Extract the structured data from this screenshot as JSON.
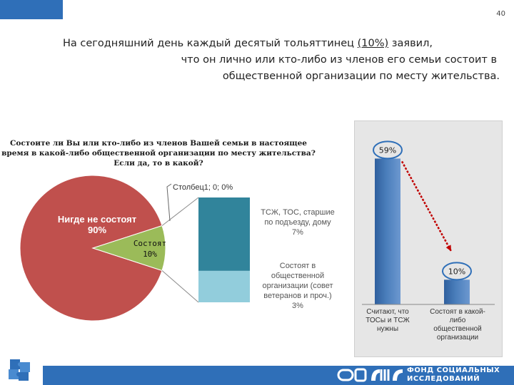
{
  "page_number": "40",
  "headline": {
    "line1_pre": "На сегодняшний день каждый десятый тольяттинец ",
    "line1_pct": "(10%)",
    "line1_post": " заявил,",
    "line2": "что он лично или кто-либо из членов его семьи состоит в",
    "line3": "общественной организации по месту жительства."
  },
  "chart_data": [
    {
      "type": "pie",
      "title": "Состоите ли Вы или кто-либо из членов Вашей семьи в настоящее время в какой-либо общественной организации по месту жительства? Если да, то в какой?",
      "title_lines": [
        "Состоите ли Вы или кто-либо из членов Вашей семьи в настоящее",
        "время в какой-либо общественной организации по месту жительства?",
        "Если да, то в какой?"
      ],
      "slices": [
        {
          "label": "Нигде не состоят",
          "value": 90,
          "value_label": "90%",
          "color": "#c0504d"
        },
        {
          "label": "Состоят",
          "value": 10,
          "value_label": "10%",
          "color": "#9bbb59"
        }
      ],
      "breakdown": {
        "parent": "Состоят",
        "zero_label": "Столбец1; 0; 0%",
        "segments": [
          {
            "label": "ТСЖ, ТОС, старшие по подъезду, дому",
            "value": 7,
            "value_label": "7%",
            "color": "#31849b"
          },
          {
            "label": "Состоят в общественной организации (совет ветеранов и проч.)",
            "value": 3,
            "value_label": "3%",
            "color": "#92cddc"
          }
        ],
        "text_lines": [
          [
            "ТСЖ, ТОС, старшие",
            "по подъезду, дому",
            "7%"
          ],
          [
            "Состоят в",
            "общественной",
            "организации (совет",
            "ветеранов и проч.)",
            "3%"
          ]
        ]
      }
    },
    {
      "type": "bar",
      "categories": [
        "Считают, что ТОСы и ТСЖ нужны",
        "Состоят в какой-либо общественной организации"
      ],
      "category_lines": [
        [
          "Считают, что",
          "ТОСы и ТСЖ",
          "нужны"
        ],
        [
          "Состоят в какой-",
          "либо",
          "общественной",
          "организации"
        ]
      ],
      "values": [
        59,
        10
      ],
      "value_labels": [
        "59%",
        "10%"
      ],
      "color": "#4a7ebb",
      "ylim": [
        0,
        62
      ]
    }
  ],
  "logo": {
    "line1": "ФОНД СОЦИАЛЬНЫХ",
    "line2": "ИССЛЕДОВАНИЙ"
  },
  "colors": {
    "brand_blue": "#2f6fb8",
    "arrow_red": "#c00000"
  }
}
